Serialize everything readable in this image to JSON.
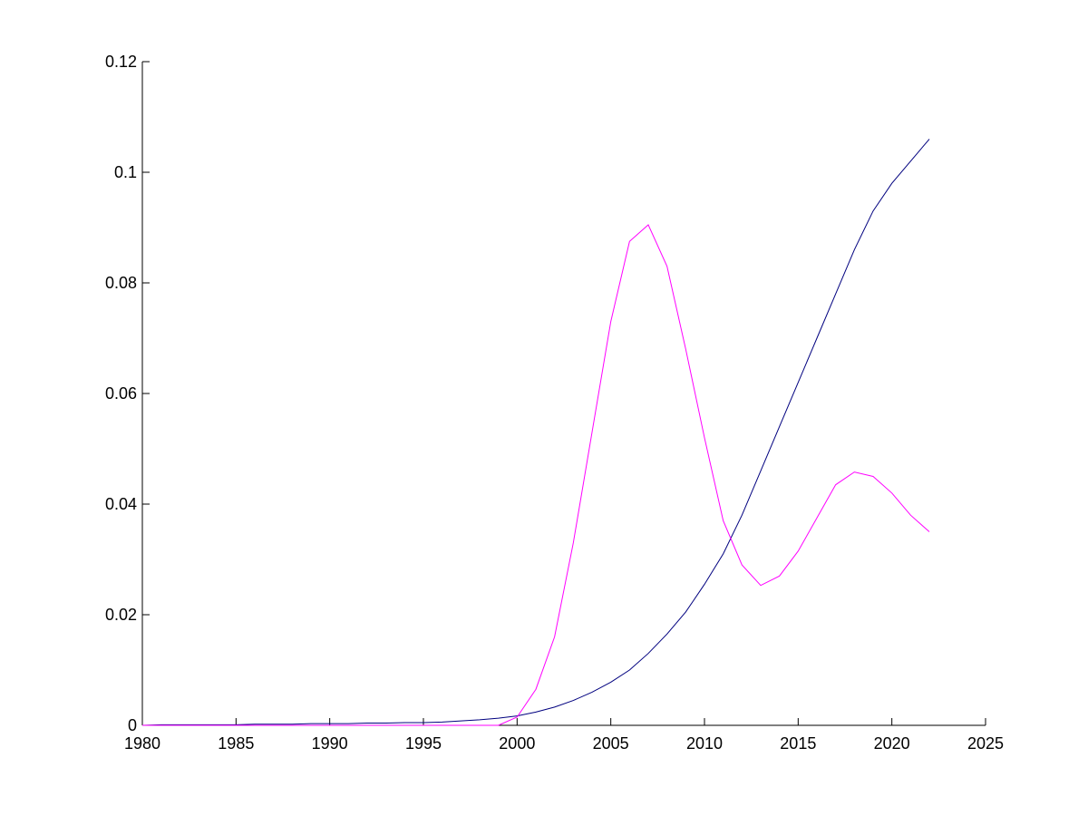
{
  "chart_data": {
    "type": "line",
    "x": [
      1980,
      1981,
      1982,
      1983,
      1984,
      1985,
      1986,
      1987,
      1988,
      1989,
      1990,
      1991,
      1992,
      1993,
      1994,
      1995,
      1996,
      1997,
      1998,
      1999,
      2000,
      2001,
      2002,
      2003,
      2004,
      2005,
      2006,
      2007,
      2008,
      2009,
      2010,
      2011,
      2012,
      2013,
      2014,
      2015,
      2016,
      2017,
      2018,
      2019,
      2020,
      2021,
      2022
    ],
    "series": [
      {
        "color": "#00007f",
        "values": [
          0,
          0.0001,
          0.0001,
          0.0001,
          0.0001,
          0.0001,
          0.0002,
          0.0002,
          0.0002,
          0.0003,
          0.0003,
          0.0003,
          0.0004,
          0.0004,
          0.0005,
          0.0005,
          0.0006,
          0.0008,
          0.001,
          0.0013,
          0.0017,
          0.0024,
          0.0033,
          0.0045,
          0.006,
          0.0078,
          0.01,
          0.013,
          0.0165,
          0.0205,
          0.0255,
          0.031,
          0.038,
          0.046,
          0.054,
          0.062,
          0.07,
          0.078,
          0.086,
          0.093,
          0.098,
          0.102,
          0.106
        ]
      },
      {
        "color": "#ff00ff",
        "values": [
          0,
          0,
          0,
          0,
          0,
          0,
          0,
          0,
          0,
          0,
          0,
          0,
          0,
          0,
          0,
          0,
          0,
          0,
          0,
          0,
          0.0015,
          0.0065,
          0.016,
          0.033,
          0.053,
          0.073,
          0.0875,
          0.0905,
          0.083,
          0.068,
          0.052,
          0.037,
          0.029,
          0.0253,
          0.027,
          0.0315,
          0.0375,
          0.0435,
          0.0458,
          0.045,
          0.042,
          0.038,
          0.035
        ]
      }
    ],
    "xlim": [
      1980,
      2025
    ],
    "xticks": [
      1980,
      1985,
      1990,
      1995,
      2000,
      2005,
      2010,
      2015,
      2020,
      2025
    ],
    "ylim": [
      0,
      0.12
    ],
    "yticks": [
      0,
      0.02,
      0.04,
      0.06,
      0.08,
      0.1,
      0.12
    ]
  }
}
